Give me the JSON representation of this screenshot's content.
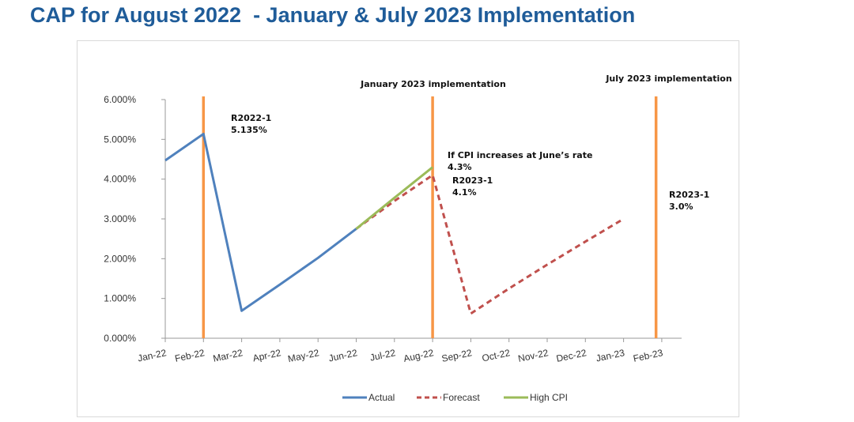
{
  "page": {
    "title": "CAP for August 2022  - January & July 2023 Implementation"
  },
  "chart_data": {
    "type": "line",
    "title": "",
    "xlabel": "",
    "ylabel": "",
    "categories": [
      "Jan-22",
      "Feb-22",
      "Mar-22",
      "Apr-22",
      "May-22",
      "Jun-22",
      "Jul-22",
      "Aug-22",
      "Sep-22",
      "Oct-22",
      "Nov-22",
      "Dec-22",
      "Jan-23",
      "Feb-23"
    ],
    "y_ticks": [
      "0.000%",
      "1.000%",
      "2.000%",
      "3.000%",
      "4.000%",
      "5.000%",
      "6.000%"
    ],
    "ylim": [
      0,
      6
    ],
    "grid": false,
    "legend_position": "bottom",
    "series": [
      {
        "name": "Actual",
        "color": "#4f81bd",
        "style": "solid",
        "points": [
          [
            0,
            4.47
          ],
          [
            1,
            5.135
          ],
          [
            2,
            0.69
          ],
          [
            3,
            1.35
          ],
          [
            4,
            2.02
          ],
          [
            5,
            2.75
          ]
        ]
      },
      {
        "name": "Forecast",
        "color": "#c0504d",
        "style": "dashed",
        "points": [
          [
            5,
            2.75
          ],
          [
            6,
            3.45
          ],
          [
            7,
            4.1
          ],
          [
            8,
            0.62
          ],
          [
            9,
            1.25
          ],
          [
            10,
            1.85
          ],
          [
            11,
            2.43
          ],
          [
            12,
            3.0
          ]
        ]
      },
      {
        "name": "High CPI",
        "color": "#9bbb59",
        "style": "solid",
        "points": [
          [
            5,
            2.75
          ],
          [
            6,
            3.53
          ],
          [
            7,
            4.3
          ]
        ]
      }
    ],
    "vertical_lines": [
      {
        "x": 1,
        "color": "#f79646"
      },
      {
        "x": 7,
        "color": "#f79646"
      },
      {
        "x": 12.85,
        "color": "#f79646"
      }
    ],
    "line_labels": [
      {
        "x": 7,
        "text": "January 2023 implementation"
      },
      {
        "x": 12.85,
        "text": "July 2023 implementation"
      }
    ],
    "annotations": [
      {
        "lines": [
          "R2022-1",
          "5.135%"
        ]
      },
      {
        "lines": [
          "If CPI increases at June’s rate",
          "4.3%"
        ]
      },
      {
        "lines": [
          "R2023-1",
          "4.1%"
        ]
      },
      {
        "lines": [
          "R2023-1",
          "3.0%"
        ]
      }
    ]
  }
}
